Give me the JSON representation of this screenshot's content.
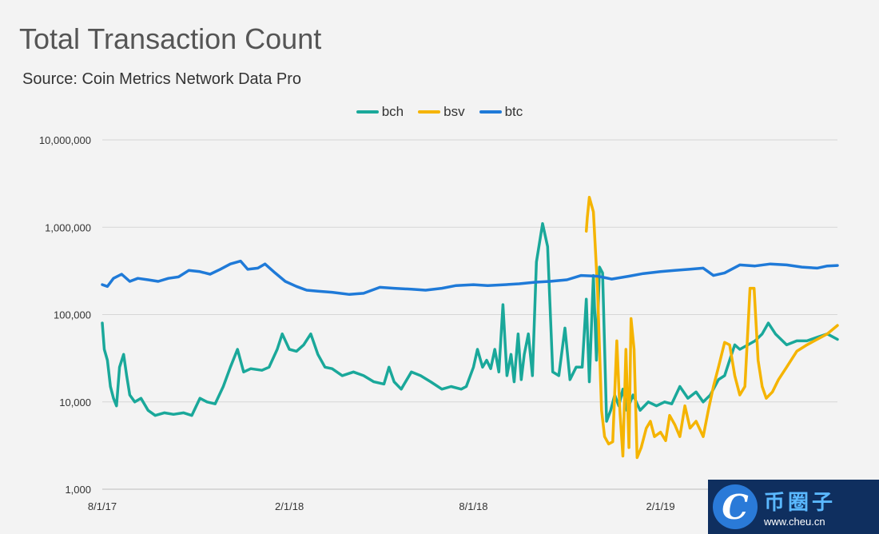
{
  "title": "Total Transaction Count",
  "subtitle": "Source: Coin Metrics Network Data Pro",
  "watermark": {
    "cn": "币圈子",
    "url": "www.cheu.cn",
    "logo": "C"
  },
  "chart_data": {
    "type": "line",
    "yscale": "log",
    "ylim": [
      1000,
      10000000
    ],
    "yticks": [
      1000,
      10000,
      100000,
      1000000,
      10000000
    ],
    "ytick_labels": [
      "1,000",
      "10,000",
      "100,000",
      "1,000,000",
      "10,000,000"
    ],
    "xlim": [
      "2017-08-01",
      "2019-07-25"
    ],
    "xticks": [
      "2017-08-01",
      "2018-02-01",
      "2018-08-01",
      "2019-02-01"
    ],
    "xtick_labels": [
      "8/1/17",
      "2/1/18",
      "8/1/18",
      "2/1/19"
    ],
    "grid": "horizontal",
    "legend_position": "top-center",
    "series": [
      {
        "name": "bch",
        "color": "#1aa89a",
        "points": [
          [
            "2017-08-01",
            80000
          ],
          [
            "2017-08-03",
            40000
          ],
          [
            "2017-08-06",
            30000
          ],
          [
            "2017-08-09",
            15000
          ],
          [
            "2017-08-12",
            11000
          ],
          [
            "2017-08-15",
            9000
          ],
          [
            "2017-08-18",
            25000
          ],
          [
            "2017-08-22",
            35000
          ],
          [
            "2017-08-25",
            20000
          ],
          [
            "2017-08-28",
            12000
          ],
          [
            "2017-09-02",
            10000
          ],
          [
            "2017-09-08",
            11000
          ],
          [
            "2017-09-15",
            8000
          ],
          [
            "2017-09-22",
            7000
          ],
          [
            "2017-10-01",
            7500
          ],
          [
            "2017-10-10",
            7200
          ],
          [
            "2017-10-20",
            7500
          ],
          [
            "2017-10-28",
            7000
          ],
          [
            "2017-11-05",
            11000
          ],
          [
            "2017-11-12",
            10000
          ],
          [
            "2017-11-20",
            9500
          ],
          [
            "2017-11-28",
            15000
          ],
          [
            "2017-12-05",
            25000
          ],
          [
            "2017-12-12",
            40000
          ],
          [
            "2017-12-18",
            22000
          ],
          [
            "2017-12-25",
            24000
          ],
          [
            "2018-01-05",
            23000
          ],
          [
            "2018-01-12",
            25000
          ],
          [
            "2018-01-20",
            40000
          ],
          [
            "2018-01-25",
            60000
          ],
          [
            "2018-02-01",
            40000
          ],
          [
            "2018-02-08",
            38000
          ],
          [
            "2018-02-15",
            45000
          ],
          [
            "2018-02-22",
            60000
          ],
          [
            "2018-03-01",
            35000
          ],
          [
            "2018-03-08",
            25000
          ],
          [
            "2018-03-15",
            24000
          ],
          [
            "2018-03-25",
            20000
          ],
          [
            "2018-04-05",
            22000
          ],
          [
            "2018-04-15",
            20000
          ],
          [
            "2018-04-25",
            17000
          ],
          [
            "2018-05-05",
            16000
          ],
          [
            "2018-05-10",
            25000
          ],
          [
            "2018-05-15",
            17000
          ],
          [
            "2018-05-22",
            14000
          ],
          [
            "2018-06-01",
            22000
          ],
          [
            "2018-06-10",
            20000
          ],
          [
            "2018-06-20",
            17000
          ],
          [
            "2018-07-01",
            14000
          ],
          [
            "2018-07-10",
            15000
          ],
          [
            "2018-07-20",
            14000
          ],
          [
            "2018-07-25",
            15000
          ],
          [
            "2018-08-01",
            25000
          ],
          [
            "2018-08-05",
            40000
          ],
          [
            "2018-08-10",
            25000
          ],
          [
            "2018-08-14",
            30000
          ],
          [
            "2018-08-18",
            24000
          ],
          [
            "2018-08-22",
            40000
          ],
          [
            "2018-08-26",
            22000
          ],
          [
            "2018-08-30",
            130000
          ],
          [
            "2018-09-03",
            20000
          ],
          [
            "2018-09-07",
            35000
          ],
          [
            "2018-09-10",
            17000
          ],
          [
            "2018-09-14",
            60000
          ],
          [
            "2018-09-17",
            18000
          ],
          [
            "2018-09-20",
            35000
          ],
          [
            "2018-09-24",
            60000
          ],
          [
            "2018-09-28",
            20000
          ],
          [
            "2018-10-02",
            400000
          ],
          [
            "2018-10-08",
            1100000
          ],
          [
            "2018-10-13",
            600000
          ],
          [
            "2018-10-18",
            22000
          ],
          [
            "2018-10-24",
            20000
          ],
          [
            "2018-10-30",
            70000
          ],
          [
            "2018-11-04",
            18000
          ],
          [
            "2018-11-10",
            25000
          ],
          [
            "2018-11-16",
            25000
          ],
          [
            "2018-11-20",
            150000
          ],
          [
            "2018-11-23",
            17000
          ],
          [
            "2018-11-27",
            280000
          ],
          [
            "2018-11-30",
            30000
          ],
          [
            "2018-12-03",
            350000
          ],
          [
            "2018-12-06",
            300000
          ],
          [
            "2018-12-10",
            6000
          ],
          [
            "2018-12-14",
            8000
          ],
          [
            "2018-12-18",
            12000
          ],
          [
            "2018-12-22",
            9000
          ],
          [
            "2018-12-26",
            14000
          ],
          [
            "2018-12-30",
            8000
          ],
          [
            "2019-01-05",
            12000
          ],
          [
            "2019-01-12",
            8000
          ],
          [
            "2019-01-20",
            10000
          ],
          [
            "2019-01-28",
            9000
          ],
          [
            "2019-02-05",
            10000
          ],
          [
            "2019-02-12",
            9500
          ],
          [
            "2019-02-20",
            15000
          ],
          [
            "2019-02-28",
            11000
          ],
          [
            "2019-03-08",
            13000
          ],
          [
            "2019-03-15",
            10000
          ],
          [
            "2019-03-22",
            12000
          ],
          [
            "2019-03-30",
            18000
          ],
          [
            "2019-04-05",
            20000
          ],
          [
            "2019-04-10",
            30000
          ],
          [
            "2019-04-15",
            45000
          ],
          [
            "2019-04-20",
            40000
          ],
          [
            "2019-04-28",
            45000
          ],
          [
            "2019-05-05",
            50000
          ],
          [
            "2019-05-12",
            60000
          ],
          [
            "2019-05-18",
            80000
          ],
          [
            "2019-05-25",
            60000
          ],
          [
            "2019-06-05",
            45000
          ],
          [
            "2019-06-15",
            50000
          ],
          [
            "2019-06-25",
            50000
          ],
          [
            "2019-07-05",
            55000
          ],
          [
            "2019-07-15",
            60000
          ],
          [
            "2019-07-25",
            52000
          ]
        ]
      },
      {
        "name": "bsv",
        "color": "#f5b400",
        "points": [
          [
            "2018-11-20",
            900000
          ],
          [
            "2018-11-21",
            1300000
          ],
          [
            "2018-11-23",
            2200000
          ],
          [
            "2018-11-27",
            1500000
          ],
          [
            "2018-12-01",
            200000
          ],
          [
            "2018-12-05",
            8000
          ],
          [
            "2018-12-08",
            4000
          ],
          [
            "2018-12-12",
            3300
          ],
          [
            "2018-12-16",
            3500
          ],
          [
            "2018-12-20",
            50000
          ],
          [
            "2018-12-23",
            8000
          ],
          [
            "2018-12-26",
            2400
          ],
          [
            "2018-12-29",
            40000
          ],
          [
            "2019-01-01",
            3000
          ],
          [
            "2019-01-03",
            90000
          ],
          [
            "2019-01-06",
            40000
          ],
          [
            "2019-01-09",
            2300
          ],
          [
            "2019-01-13",
            3000
          ],
          [
            "2019-01-18",
            5000
          ],
          [
            "2019-01-22",
            6000
          ],
          [
            "2019-01-26",
            4000
          ],
          [
            "2019-02-01",
            4500
          ],
          [
            "2019-02-06",
            3600
          ],
          [
            "2019-02-10",
            7000
          ],
          [
            "2019-02-15",
            5500
          ],
          [
            "2019-02-20",
            4000
          ],
          [
            "2019-02-25",
            9000
          ],
          [
            "2019-03-02",
            5000
          ],
          [
            "2019-03-08",
            6000
          ],
          [
            "2019-03-15",
            4000
          ],
          [
            "2019-03-20",
            8000
          ],
          [
            "2019-03-25",
            15000
          ],
          [
            "2019-03-30",
            25000
          ],
          [
            "2019-04-05",
            48000
          ],
          [
            "2019-04-10",
            45000
          ],
          [
            "2019-04-15",
            20000
          ],
          [
            "2019-04-20",
            12000
          ],
          [
            "2019-04-25",
            15000
          ],
          [
            "2019-04-30",
            200000
          ],
          [
            "2019-05-04",
            200000
          ],
          [
            "2019-05-08",
            30000
          ],
          [
            "2019-05-12",
            15000
          ],
          [
            "2019-05-16",
            11000
          ],
          [
            "2019-05-22",
            13000
          ],
          [
            "2019-05-28",
            18000
          ],
          [
            "2019-06-05",
            25000
          ],
          [
            "2019-06-15",
            38000
          ],
          [
            "2019-06-25",
            45000
          ],
          [
            "2019-07-05",
            52000
          ],
          [
            "2019-07-15",
            60000
          ],
          [
            "2019-07-25",
            75000
          ]
        ]
      },
      {
        "name": "btc",
        "color": "#1f7ad8",
        "points": [
          [
            "2017-08-01",
            220000
          ],
          [
            "2017-08-06",
            210000
          ],
          [
            "2017-08-12",
            260000
          ],
          [
            "2017-08-20",
            290000
          ],
          [
            "2017-08-28",
            240000
          ],
          [
            "2017-09-05",
            260000
          ],
          [
            "2017-09-15",
            250000
          ],
          [
            "2017-09-25",
            240000
          ],
          [
            "2017-10-05",
            260000
          ],
          [
            "2017-10-15",
            270000
          ],
          [
            "2017-10-25",
            320000
          ],
          [
            "2017-11-05",
            310000
          ],
          [
            "2017-11-15",
            290000
          ],
          [
            "2017-11-25",
            330000
          ],
          [
            "2017-12-05",
            380000
          ],
          [
            "2017-12-15",
            410000
          ],
          [
            "2017-12-22",
            330000
          ],
          [
            "2018-01-01",
            340000
          ],
          [
            "2018-01-08",
            380000
          ],
          [
            "2018-01-18",
            300000
          ],
          [
            "2018-01-28",
            240000
          ],
          [
            "2018-02-08",
            210000
          ],
          [
            "2018-02-18",
            190000
          ],
          [
            "2018-03-01",
            185000
          ],
          [
            "2018-03-15",
            180000
          ],
          [
            "2018-04-01",
            170000
          ],
          [
            "2018-04-15",
            175000
          ],
          [
            "2018-05-01",
            205000
          ],
          [
            "2018-05-15",
            200000
          ],
          [
            "2018-06-01",
            195000
          ],
          [
            "2018-06-15",
            190000
          ],
          [
            "2018-07-01",
            200000
          ],
          [
            "2018-07-15",
            215000
          ],
          [
            "2018-08-01",
            220000
          ],
          [
            "2018-08-15",
            215000
          ],
          [
            "2018-09-01",
            220000
          ],
          [
            "2018-09-15",
            225000
          ],
          [
            "2018-10-01",
            235000
          ],
          [
            "2018-10-15",
            240000
          ],
          [
            "2018-11-01",
            250000
          ],
          [
            "2018-11-15",
            280000
          ],
          [
            "2018-12-01",
            275000
          ],
          [
            "2018-12-15",
            255000
          ],
          [
            "2019-01-01",
            275000
          ],
          [
            "2019-01-15",
            295000
          ],
          [
            "2019-02-01",
            310000
          ],
          [
            "2019-02-15",
            320000
          ],
          [
            "2019-03-01",
            330000
          ],
          [
            "2019-03-15",
            340000
          ],
          [
            "2019-03-25",
            280000
          ],
          [
            "2019-04-05",
            300000
          ],
          [
            "2019-04-20",
            370000
          ],
          [
            "2019-05-05",
            360000
          ],
          [
            "2019-05-20",
            380000
          ],
          [
            "2019-06-05",
            370000
          ],
          [
            "2019-06-20",
            350000
          ],
          [
            "2019-07-05",
            340000
          ],
          [
            "2019-07-15",
            360000
          ],
          [
            "2019-07-25",
            365000
          ]
        ]
      }
    ]
  }
}
